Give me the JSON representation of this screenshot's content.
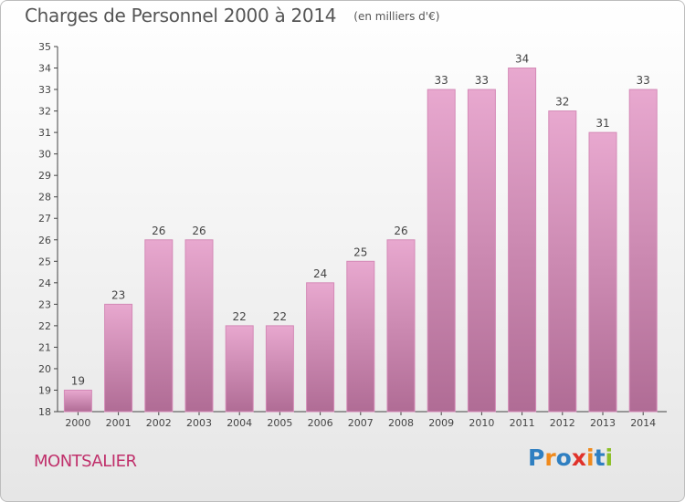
{
  "chart_data": {
    "type": "bar",
    "title": "Charges de Personnel 2000 à 2014",
    "subtitle": "(en milliers d'€)",
    "categories": [
      "2000",
      "2001",
      "2002",
      "2003",
      "2004",
      "2005",
      "2006",
      "2007",
      "2008",
      "2009",
      "2010",
      "2011",
      "2012",
      "2013",
      "2014"
    ],
    "values": [
      19,
      23,
      26,
      26,
      22,
      22,
      24,
      25,
      26,
      33,
      33,
      34,
      32,
      31,
      33
    ],
    "ylim": [
      18,
      35
    ],
    "yticks": [
      18,
      19,
      20,
      21,
      22,
      23,
      24,
      25,
      26,
      27,
      28,
      29,
      30,
      31,
      32,
      33,
      34,
      35
    ],
    "grid": false,
    "bar_color_top": "#e8a8cf",
    "bar_color_bottom": "#b06c95",
    "bar_edge": "#d48ab7"
  },
  "footer": {
    "place": "MONTSALIER",
    "logo_letters": [
      "P",
      "r",
      "o",
      "x",
      "i",
      "t",
      "i"
    ],
    "logo_colors": [
      "#2f7fc1",
      "#f08a1c",
      "#2f7fc1",
      "#e0322a",
      "#f08a1c",
      "#2f7fc1",
      "#8cbf26"
    ]
  }
}
